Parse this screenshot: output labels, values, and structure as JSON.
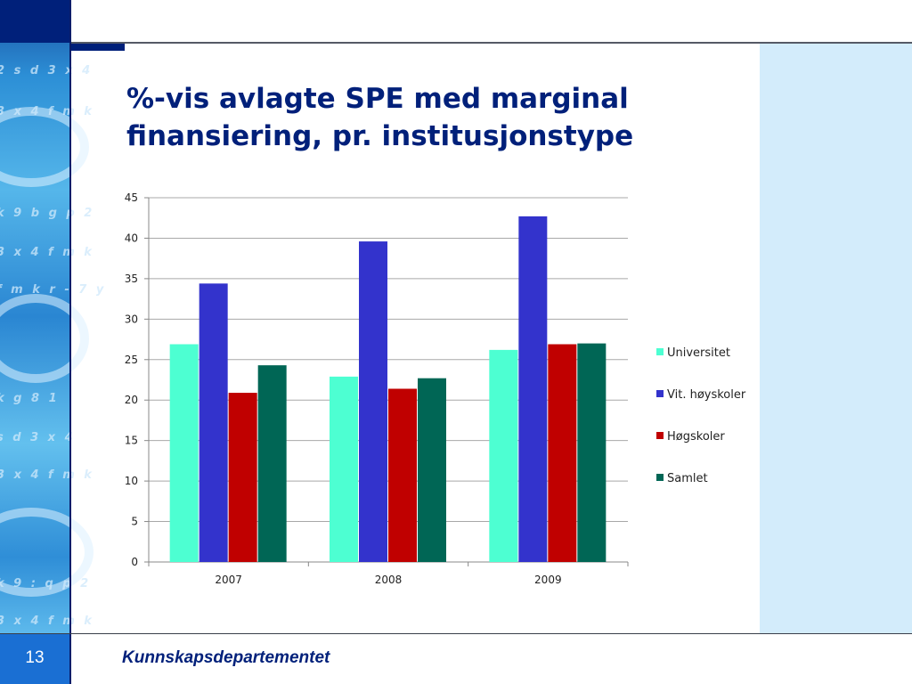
{
  "slide": {
    "title": "%-vis avlagte SPE med marginal finansiering, pr. institusjonstype",
    "number": "13",
    "footer": "Kunnskapsdepartementet",
    "sidebar_glyphs": [
      "2 s d 3 x 4",
      "3 x 4 f m k",
      "k 9 b g p 2",
      "3 x 4 f m k",
      "f m k r - 7 y",
      "k g      8 1",
      "s d 3 x 4",
      "3 x 4 f m k",
      "k 9 :  q p 2",
      "3 x 4 f m k"
    ]
  },
  "colors": {
    "navy": "#00207a",
    "panel": "#d3ecfb",
    "slide_number_bg": "#1a6fd3"
  },
  "chart_data": {
    "type": "bar",
    "title": "",
    "xlabel": "",
    "ylabel": "",
    "categories": [
      "2007",
      "2008",
      "2009"
    ],
    "series": [
      {
        "name": "Universitet",
        "color": "#4dffd2",
        "values": [
          26.9,
          22.9,
          26.2
        ]
      },
      {
        "name": "Vit. høyskoler",
        "color": "#3333cc",
        "values": [
          34.4,
          39.6,
          42.7
        ]
      },
      {
        "name": "Høgskoler",
        "color": "#c00000",
        "values": [
          20.9,
          21.4,
          26.9
        ]
      },
      {
        "name": "Samlet",
        "color": "#006655",
        "values": [
          24.3,
          22.7,
          27.0
        ]
      }
    ],
    "ylim": [
      0,
      45
    ],
    "yticks": [
      "0",
      "5",
      "10",
      "15",
      "20",
      "25",
      "30",
      "35",
      "40",
      "45"
    ],
    "grid": true,
    "legend": "right"
  }
}
